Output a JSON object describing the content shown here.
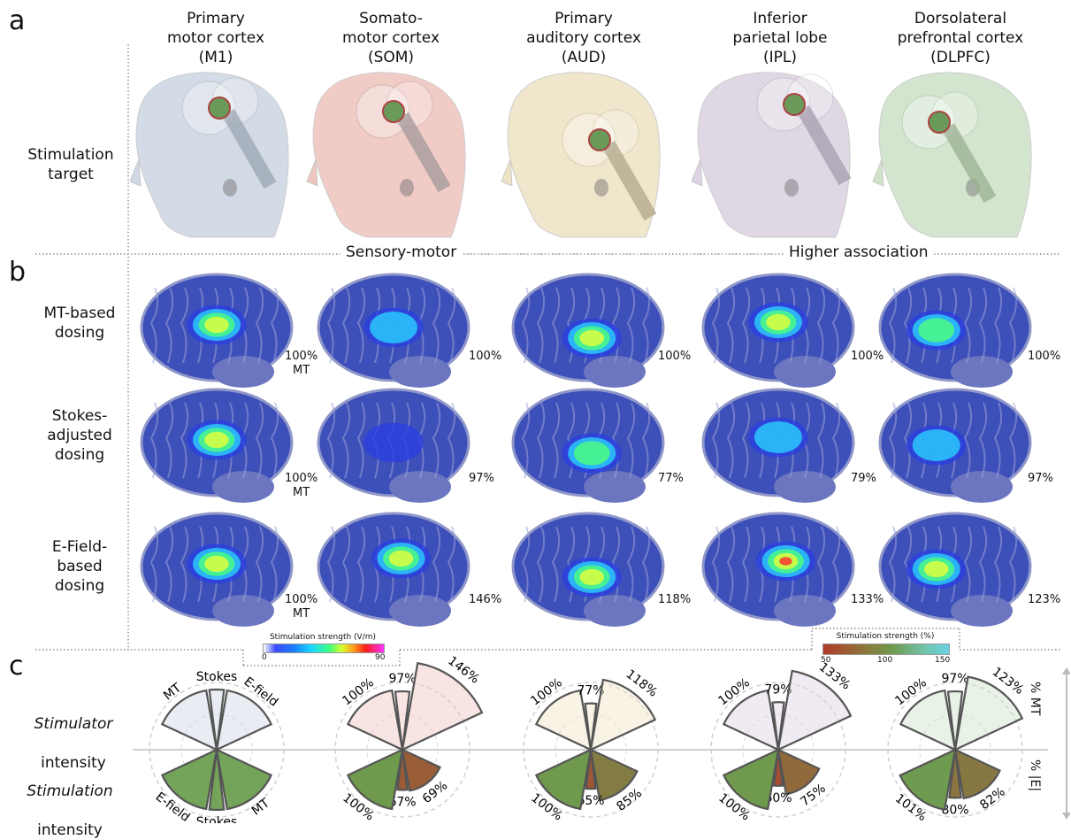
{
  "panels": {
    "a": "a",
    "b": "b",
    "c": "c"
  },
  "columns": [
    {
      "name": "Primary\nmotor cortex\n(M1)",
      "key": "M1",
      "color": "#cfd8e4",
      "coil": "#9aa6b2"
    },
    {
      "name": "Somato-\nmotor cortex\n(SOM)",
      "key": "SOM",
      "color": "#f0c6c0",
      "coil": "#a09898"
    },
    {
      "name": "Primary\nauditory cortex\n(AUD)",
      "key": "AUD",
      "color": "#efe4c6",
      "coil": "#b0a58a"
    },
    {
      "name": "Inferior\nparietal lobe\n(IPL)",
      "key": "IPL",
      "color": "#ddd3e2",
      "coil": "#a69cad"
    },
    {
      "name": "Dorsolateral\nprefrontal cortex\n(DLPFC)",
      "key": "DLPFC",
      "color": "#cfe3c9",
      "coil": "#9bb092"
    }
  ],
  "row_labels": {
    "stimulation_target": "Stimulation\ntarget",
    "mt_dosing": "MT-based\ndosing",
    "stokes_dosing": "Stokes-\nadjusted\ndosing",
    "efield_dosing": "E-Field-\nbased\ndosing",
    "stimulator_intensity_italic": "Stimulator",
    "stimulator_intensity_rest": "intensity",
    "stimulation_intensity_italic": "Stimulation",
    "stimulation_intensity_rest": "intensity"
  },
  "groups": {
    "sensory_motor": "Sensory-motor",
    "higher_association": "Higher association"
  },
  "brain_labels": {
    "mt": [
      "100%\nMT",
      "100%",
      "100%",
      "100%",
      "100%"
    ],
    "stokes": [
      "100%\nMT",
      "97%",
      "77%",
      "79%",
      "97%"
    ],
    "efield": [
      "100%\nMT",
      "146%",
      "118%",
      "133%",
      "123%"
    ]
  },
  "colorbar_vm": {
    "title": "Stimulation strength (V/m)",
    "min": "0",
    "max": "90"
  },
  "colorbar_pct": {
    "title": "Stimulation strength (%)",
    "ticks": [
      "50",
      "100",
      "150"
    ]
  },
  "side_axis": {
    "top": "% MT",
    "bottom": "% |E|"
  },
  "wedge_labels": {
    "mt": "MT",
    "stokes": "Stokes",
    "efield": "E-field"
  },
  "chart_data": {
    "type": "polar-bar",
    "categories": [
      "MT",
      "Stokes",
      "E-field"
    ],
    "series": [
      {
        "name": "Stimulator intensity",
        "unit": "% MT",
        "values": {
          "M1": [
            100,
            100,
            100
          ],
          "SOM": [
            100,
            97,
            146
          ],
          "AUD": [
            100,
            77,
            118
          ],
          "IPL": [
            100,
            79,
            133
          ],
          "DLPFC": [
            100,
            97,
            123
          ]
        },
        "labels": {
          "M1": [
            "",
            "",
            ""
          ],
          "SOM": [
            "100%",
            "97%",
            "146%"
          ],
          "AUD": [
            "100%",
            "77%",
            "118%"
          ],
          "IPL": [
            "100%",
            "79%",
            "133%"
          ],
          "DLPFC": [
            "100%",
            "97%",
            "123%"
          ]
        }
      },
      {
        "name": "Stimulation intensity",
        "unit": "% |E|",
        "values": {
          "M1": [
            100,
            100,
            100
          ],
          "SOM": [
            69,
            67,
            100
          ],
          "AUD": [
            85,
            65,
            100
          ],
          "IPL": [
            75,
            60,
            100
          ],
          "DLPFC": [
            82,
            80,
            101
          ]
        },
        "labels": {
          "M1": [
            "",
            "",
            ""
          ],
          "SOM": [
            "69%",
            "67%",
            "100%"
          ],
          "AUD": [
            "85%",
            "65%",
            "100%"
          ],
          "IPL": [
            "75%",
            "60%",
            "100%"
          ],
          "DLPFC": [
            "82%",
            "80%",
            "101%"
          ]
        }
      }
    ]
  }
}
